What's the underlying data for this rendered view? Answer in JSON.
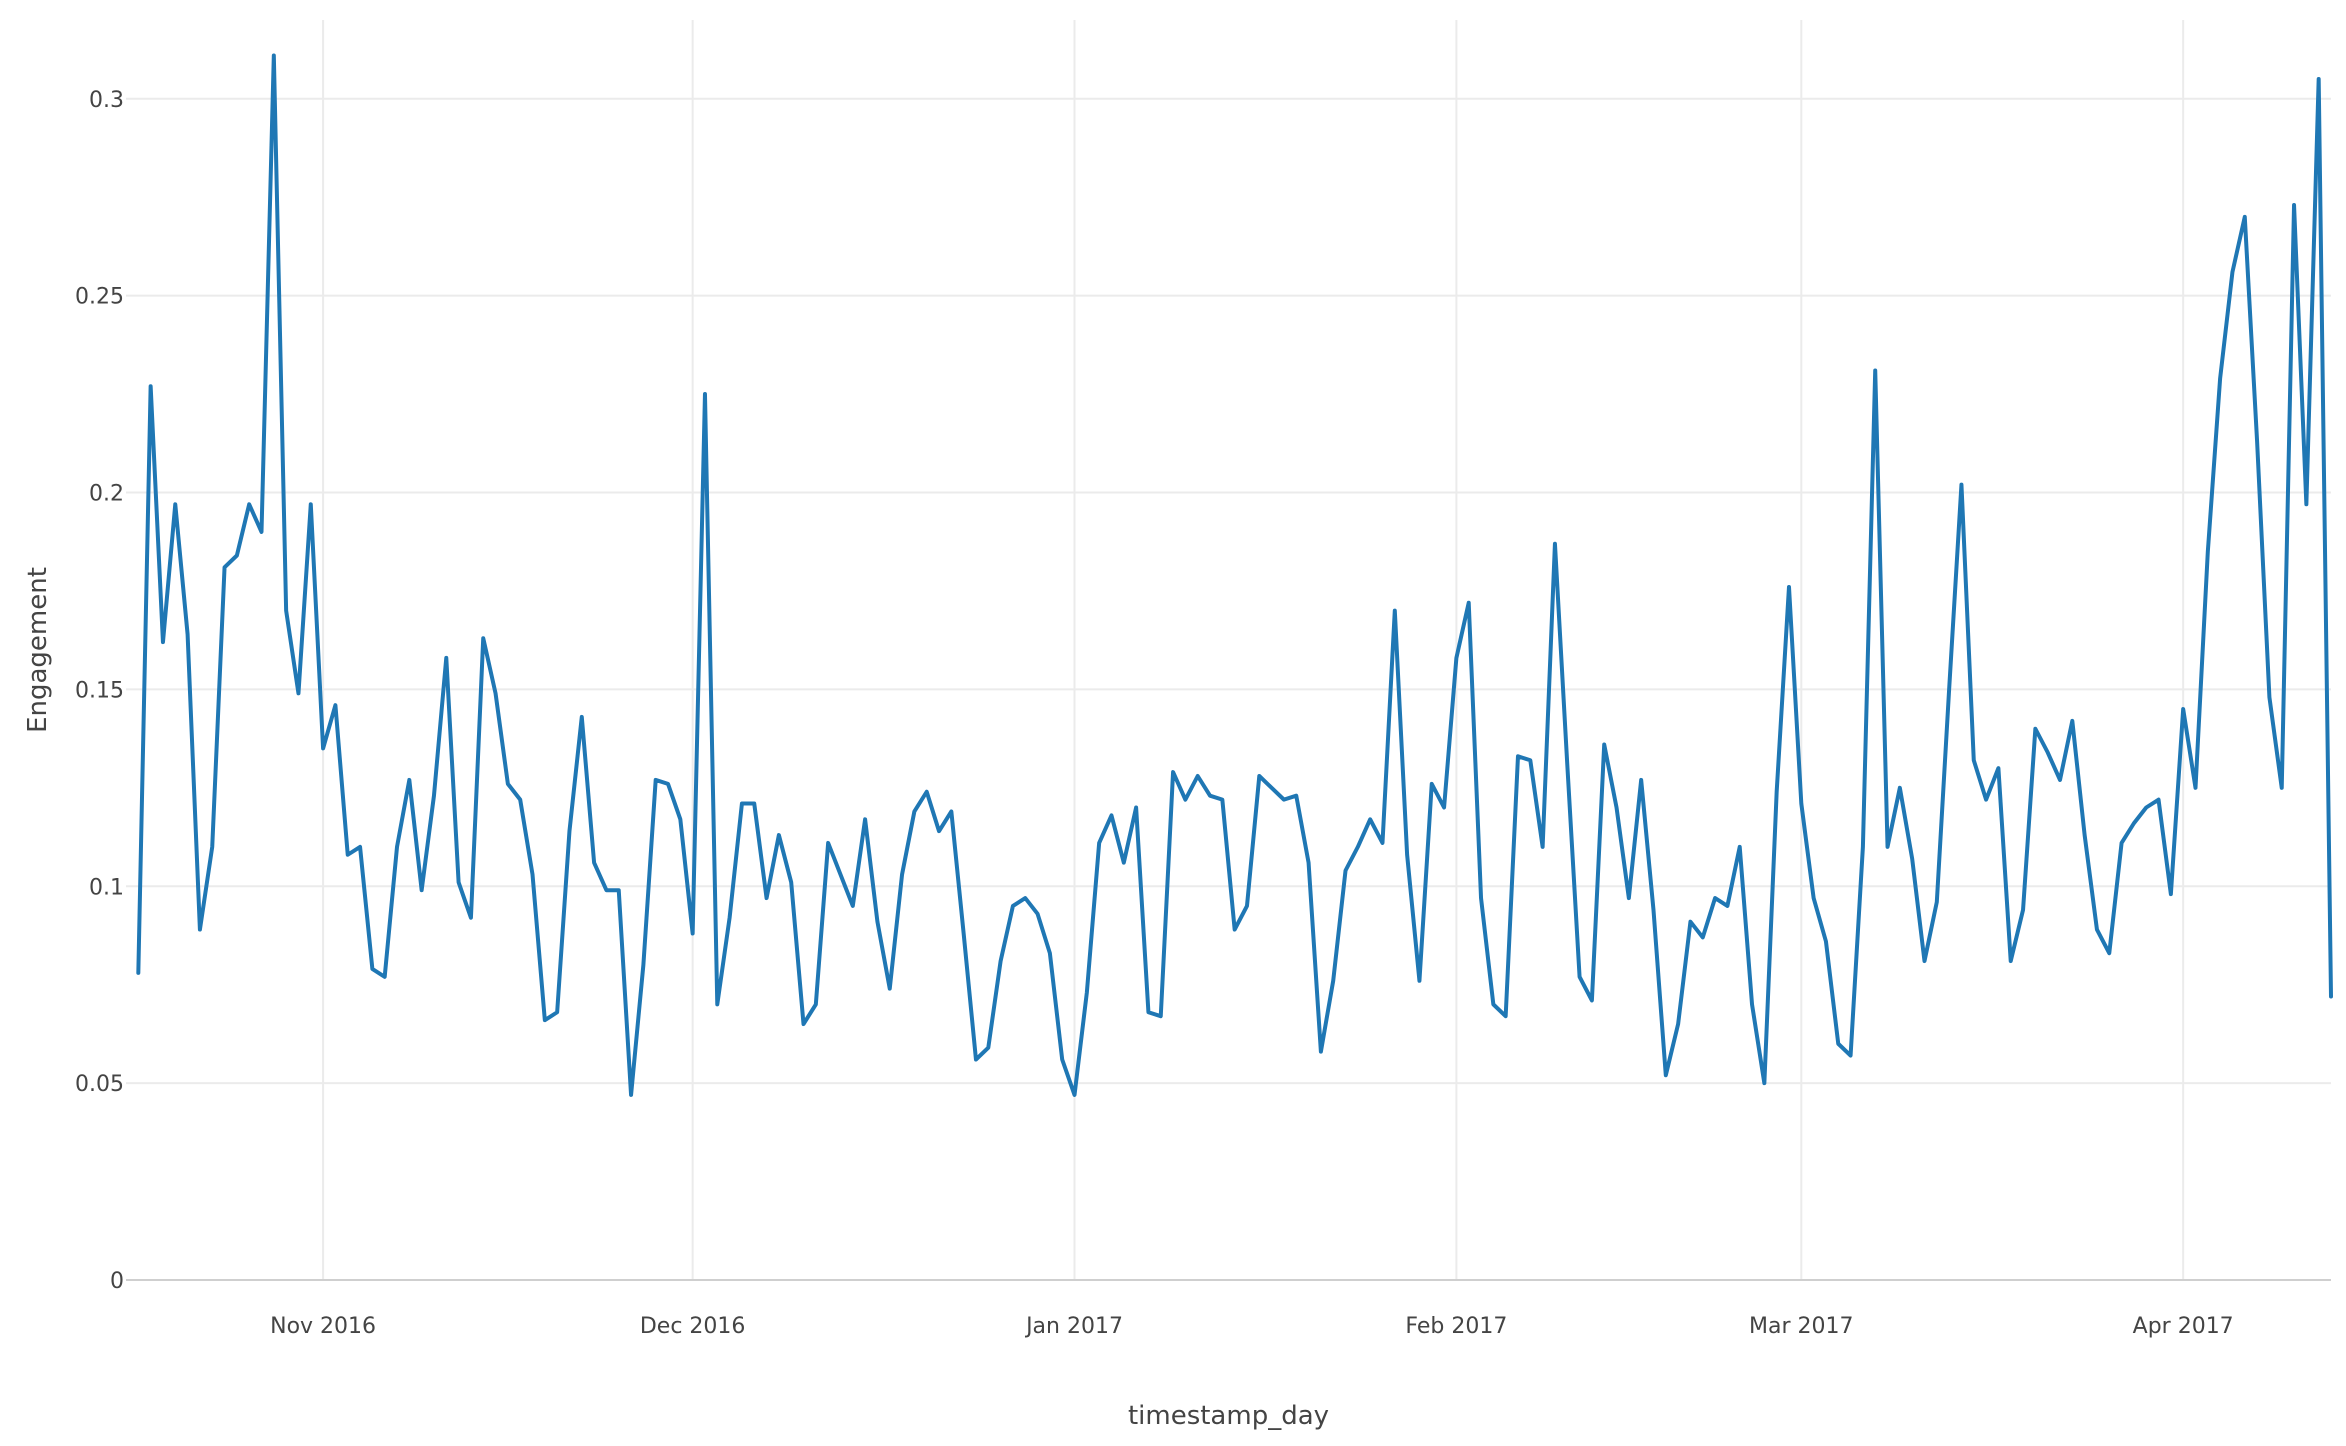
{
  "chart_data": {
    "type": "line",
    "xlabel": "timestamp_day",
    "ylabel": "Engagement",
    "x_start": "2016-10-17",
    "x_end": "2017-04-13",
    "xlim": [
      "2016-10-16",
      "2017-04-13"
    ],
    "ylim": [
      0,
      0.32
    ],
    "grid": true,
    "legend": "none",
    "x_ticks": [
      {
        "date": "2016-11-01",
        "label": "Nov 2016"
      },
      {
        "date": "2016-12-01",
        "label": "Dec 2016"
      },
      {
        "date": "2017-01-01",
        "label": "Jan 2017"
      },
      {
        "date": "2017-02-01",
        "label": "Feb 2017"
      },
      {
        "date": "2017-03-01",
        "label": "Mar 2017"
      },
      {
        "date": "2017-04-01",
        "label": "Apr 2017"
      }
    ],
    "y_ticks": [
      {
        "value": 0,
        "label": "0"
      },
      {
        "value": 0.05,
        "label": "0.05"
      },
      {
        "value": 0.1,
        "label": "0.1"
      },
      {
        "value": 0.15,
        "label": "0.15"
      },
      {
        "value": 0.2,
        "label": "0.2"
      },
      {
        "value": 0.25,
        "label": "0.25"
      },
      {
        "value": 0.3,
        "label": "0.3"
      }
    ],
    "colors": {
      "series": "#1f77b4",
      "grid": "#ebebeb",
      "text": "#444444"
    },
    "series": [
      {
        "values": [
          0.078,
          0.227,
          0.162,
          0.197,
          0.164,
          0.089,
          0.11,
          0.181,
          0.184,
          0.197,
          0.19,
          0.311,
          0.17,
          0.149,
          0.197,
          0.135,
          0.146,
          0.108,
          0.11,
          0.079,
          0.077,
          0.11,
          0.127,
          0.099,
          0.123,
          0.158,
          0.101,
          0.092,
          0.163,
          0.149,
          0.126,
          0.122,
          0.103,
          0.066,
          0.068,
          0.114,
          0.143,
          0.106,
          0.099,
          0.099,
          0.047,
          0.08,
          0.127,
          0.126,
          0.117,
          0.088,
          0.225,
          0.07,
          0.092,
          0.121,
          0.121,
          0.097,
          0.113,
          0.101,
          0.065,
          0.07,
          0.111,
          0.103,
          0.095,
          0.117,
          0.091,
          0.074,
          0.103,
          0.119,
          0.124,
          0.114,
          0.119,
          0.088,
          0.056,
          0.059,
          0.081,
          0.095,
          0.097,
          0.093,
          0.083,
          0.056,
          0.047,
          0.073,
          0.111,
          0.118,
          0.106,
          0.12,
          0.068,
          0.067,
          0.129,
          0.122,
          0.128,
          0.123,
          0.122,
          0.089,
          0.095,
          0.128,
          0.125,
          0.122,
          0.123,
          0.106,
          0.058,
          0.076,
          0.104,
          0.11,
          0.117,
          0.111,
          0.17,
          0.108,
          0.076,
          0.126,
          0.12,
          0.158,
          0.172,
          0.097,
          0.07,
          0.067,
          0.133,
          0.132,
          0.11,
          0.187,
          0.131,
          0.077,
          0.071,
          0.136,
          0.12,
          0.097,
          0.127,
          0.094,
          0.052,
          0.065,
          0.091,
          0.087,
          0.097,
          0.095,
          0.11,
          0.07,
          0.05,
          0.124,
          0.176,
          0.121,
          0.097,
          0.086,
          0.06,
          0.057,
          0.11,
          0.231,
          0.11,
          0.125,
          0.107,
          0.081,
          0.096,
          0.15,
          0.202,
          0.132,
          0.122,
          0.13,
          0.081,
          0.094,
          0.14,
          0.134,
          0.127,
          0.142,
          0.113,
          0.089,
          0.083,
          0.111,
          0.116,
          0.12,
          0.122,
          0.098,
          0.145,
          0.125,
          0.185,
          0.229,
          0.256,
          0.27,
          0.213,
          0.148,
          0.125,
          0.273,
          0.197,
          0.305,
          0.072
        ]
      }
    ]
  }
}
